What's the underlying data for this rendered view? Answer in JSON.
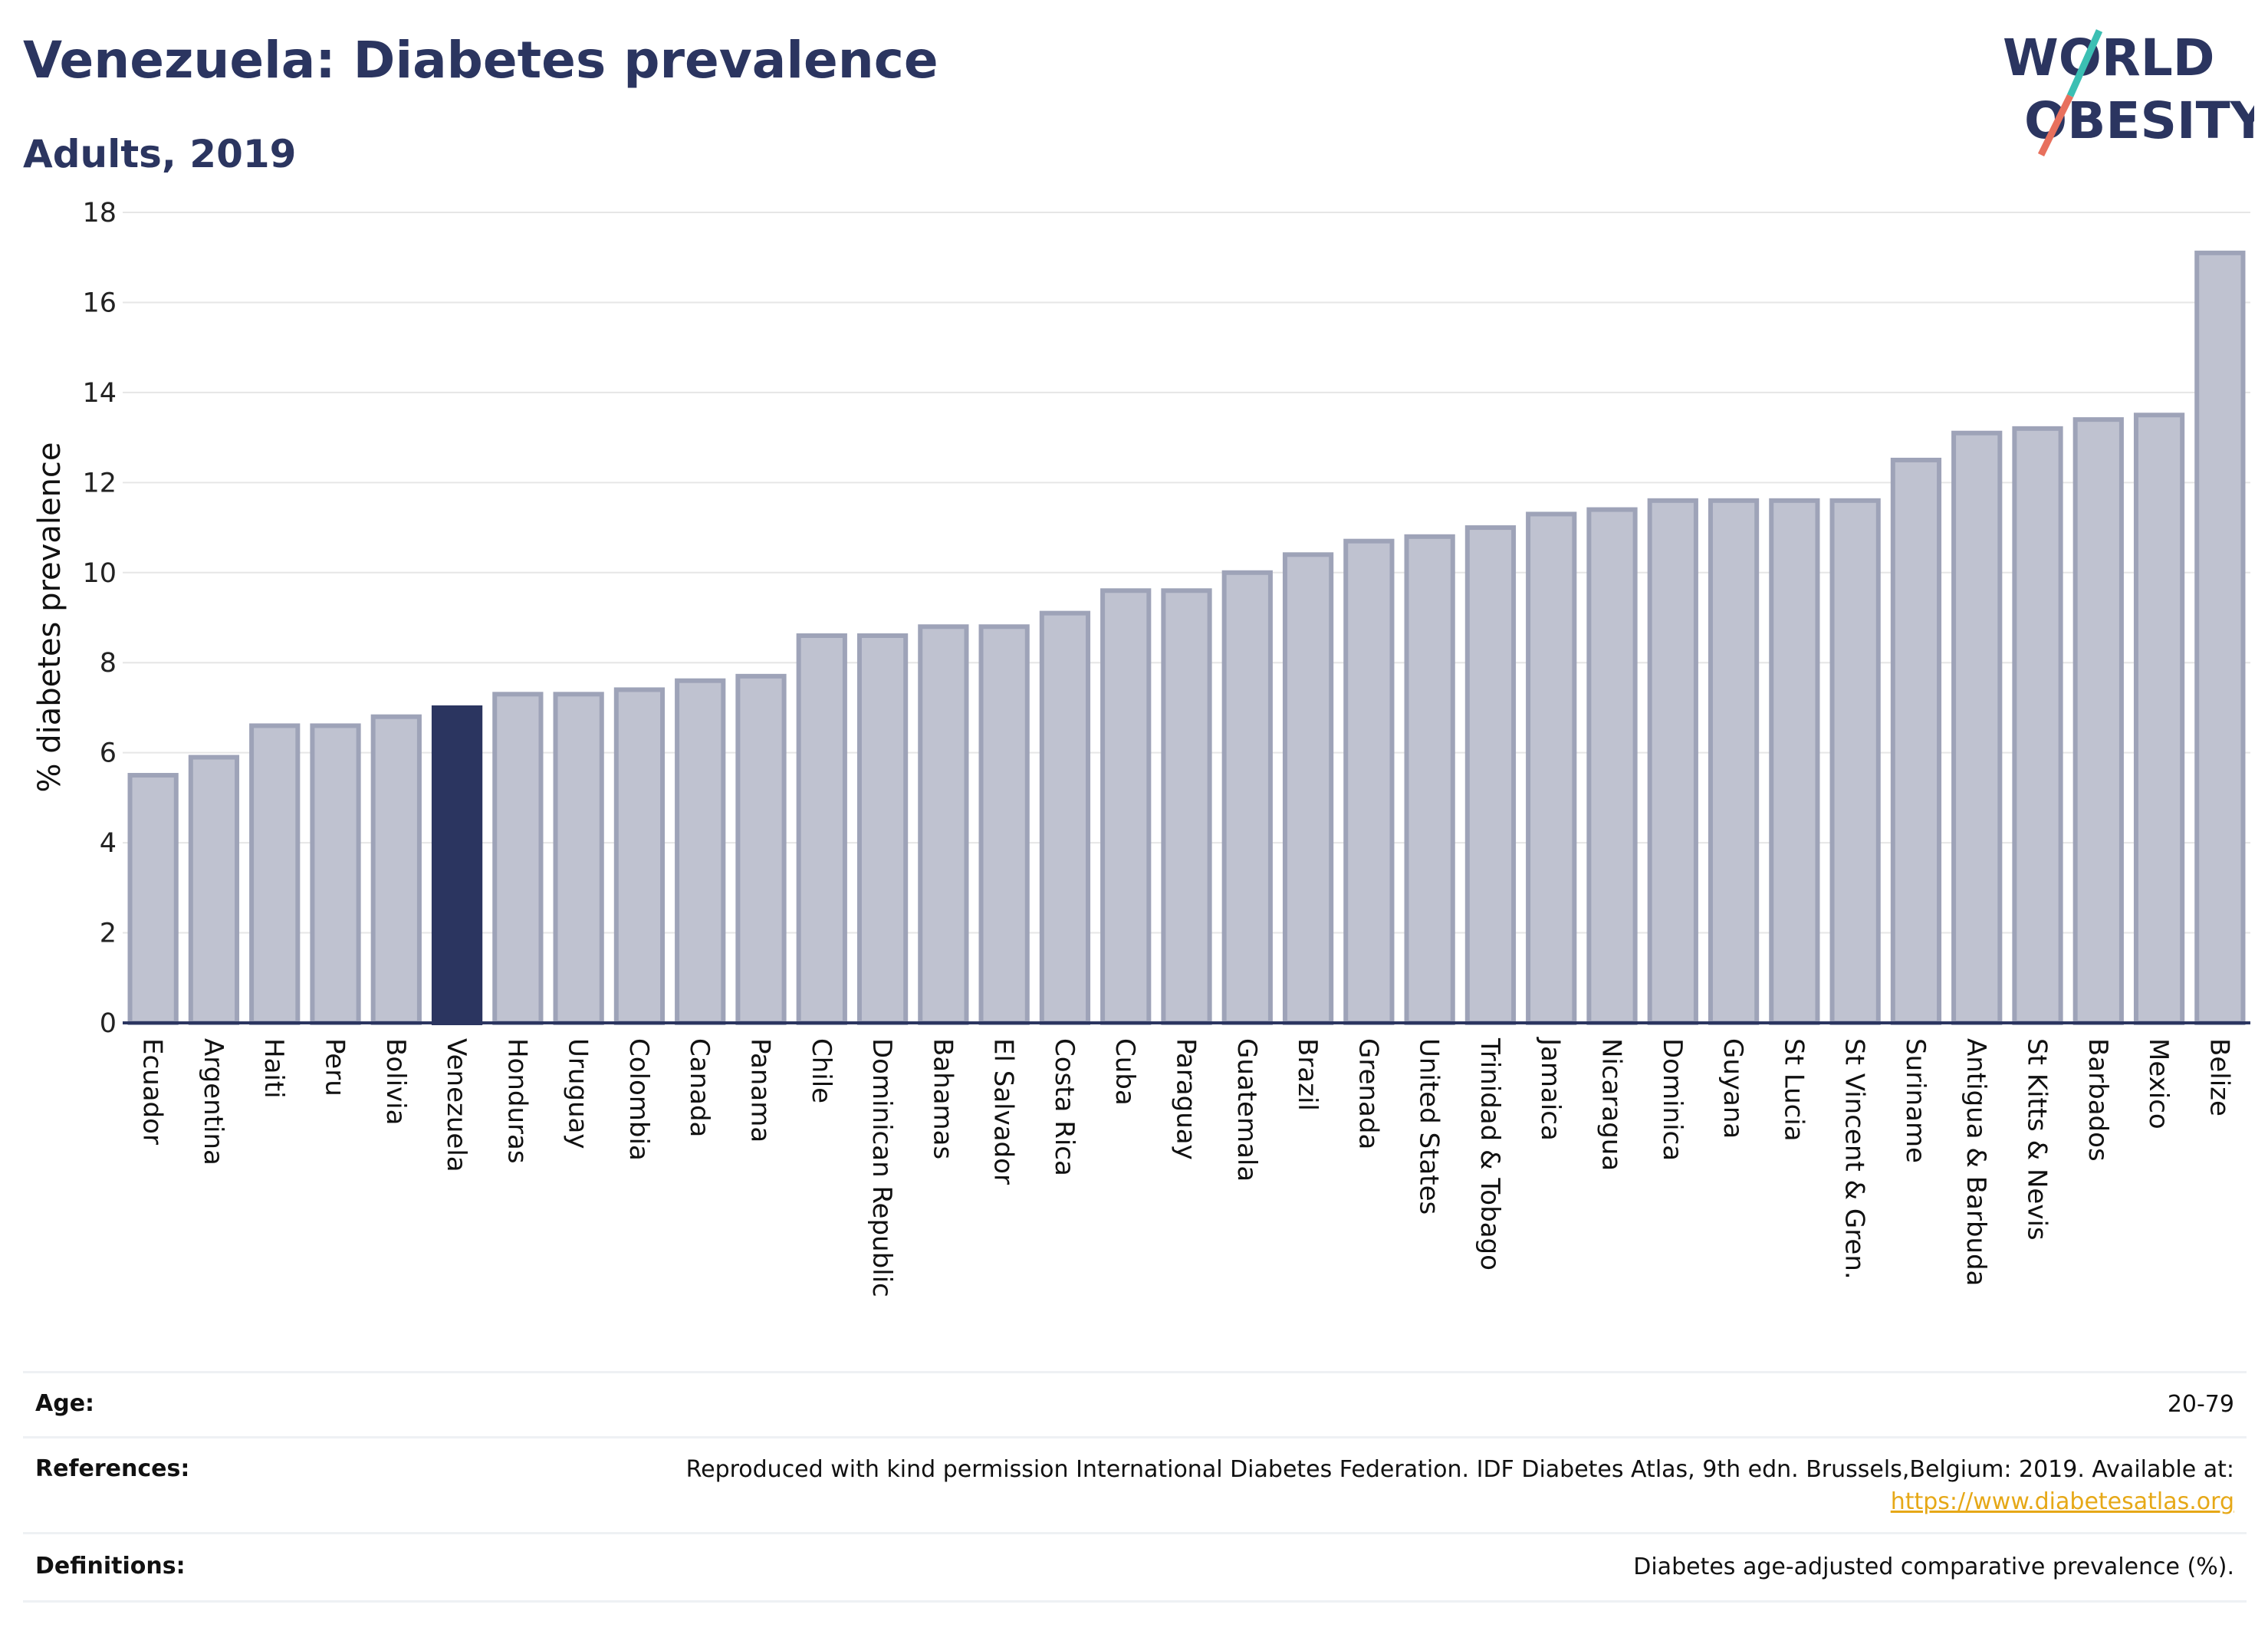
{
  "header": {
    "title": "Venezuela: Diabetes prevalence",
    "subtitle": "Adults, 2019",
    "logo": {
      "line1": "WORLD",
      "line2": "OBESITY"
    }
  },
  "chart_data": {
    "type": "bar",
    "ylabel": "% diabetes prevalence",
    "ylim": [
      0,
      18
    ],
    "yticks": [
      0,
      2,
      4,
      6,
      8,
      10,
      12,
      14,
      16,
      18
    ],
    "grid": true,
    "highlight": "Venezuela",
    "colors": {
      "bar": "#bfc2d0",
      "bar_edge": "#9ea3b8",
      "highlight": "#2b3560",
      "grid": "#e6e6e6",
      "axis": "#2b3560"
    },
    "categories": [
      "Ecuador",
      "Argentina",
      "Haiti",
      "Peru",
      "Bolivia",
      "Venezuela",
      "Honduras",
      "Uruguay",
      "Colombia",
      "Canada",
      "Panama",
      "Chile",
      "Dominican Republic",
      "Bahamas",
      "El Salvador",
      "Costa Rica",
      "Cuba",
      "Paraguay",
      "Guatemala",
      "Brazil",
      "Grenada",
      "United States",
      "Trinidad & Tobago",
      "Jamaica",
      "Nicaragua",
      "Dominica",
      "Guyana",
      "St Lucia",
      "St Vincent & Gren.",
      "Suriname",
      "Antigua & Barbuda",
      "St Kitts & Nevis",
      "Barbados",
      "Mexico",
      "Belize"
    ],
    "values": [
      5.5,
      5.9,
      6.6,
      6.6,
      6.8,
      7.0,
      7.3,
      7.3,
      7.4,
      7.6,
      7.7,
      8.6,
      8.6,
      8.8,
      8.8,
      9.1,
      9.6,
      9.6,
      10.0,
      10.4,
      10.7,
      10.8,
      11.0,
      11.3,
      11.4,
      11.6,
      11.6,
      11.6,
      11.6,
      12.5,
      13.1,
      13.2,
      13.4,
      13.5,
      17.1
    ]
  },
  "info": {
    "age": {
      "label": "Age:",
      "value": "20-79"
    },
    "references": {
      "label": "References:",
      "text": "Reproduced with kind permission International Diabetes Federation. IDF Diabetes Atlas, 9th edn. Brussels,Belgium: 2019. Available at:",
      "link": "https://www.diabetesatlas.org"
    },
    "definitions": {
      "label": "Definitions:",
      "value": "Diabetes age-adjusted comparative prevalence (%)."
    }
  }
}
